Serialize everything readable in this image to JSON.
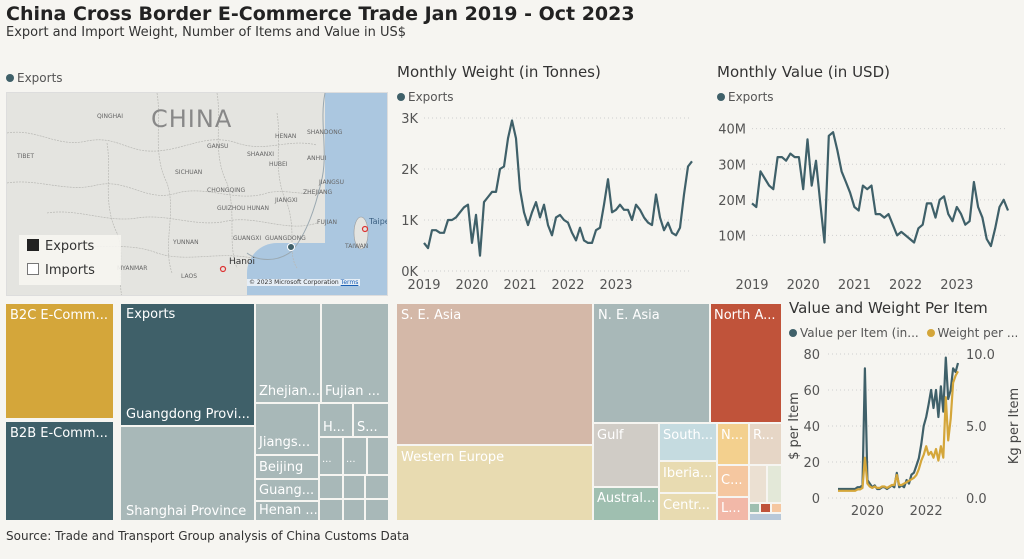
{
  "header": {
    "title": "China Cross Border E-Commerce Trade Jan 2019 - Oct 2023",
    "subtitle": "Export and Import Weight, Number of Items and Value in US$"
  },
  "map": {
    "legend_label": "Exports",
    "country_label": "CHINA",
    "toggle_exports": "Exports",
    "toggle_imports": "Imports",
    "copyright": "© 2023 Microsoft Corporation",
    "terms": "Terms",
    "places": [
      "QINGHAI",
      "TIBET",
      "GANSU",
      "SHAANXI",
      "HENAN",
      "SHANDONG",
      "SICHUAN",
      "HUBEI",
      "ANHUI",
      "JIANGSU",
      "CHONGQING",
      "ZHEJIANG",
      "GUIZHOU",
      "JIANGXI",
      "HUNAN",
      "FUJIAN",
      "YUNNAN",
      "GUANGXI",
      "GUANGDONG",
      "TAIWAN",
      "Taipei",
      "Hanoi",
      "LAOS",
      "MYANMAR"
    ]
  },
  "weight_chart": {
    "title": "Monthly Weight (in Tonnes)",
    "legend": "Exports",
    "y_ticks": [
      "0K",
      "1K",
      "2K",
      "3K"
    ],
    "x_ticks": [
      "2019",
      "2020",
      "2021",
      "2022",
      "2023"
    ]
  },
  "value_chart": {
    "title": "Monthly Value (in USD)",
    "legend": "Exports",
    "y_ticks": [
      "10M",
      "20M",
      "30M",
      "40M"
    ],
    "x_ticks": [
      "2019",
      "2020",
      "2021",
      "2022",
      "2023"
    ]
  },
  "per_item_chart": {
    "title": "Value and Weight Per Item",
    "legend_value": "Value per Item (in...",
    "legend_weight": "Weight per ...",
    "y_left_label": "$ per Item",
    "y_right_label": "Kg per Item",
    "y_left_ticks": [
      "0",
      "20",
      "40",
      "60",
      "80"
    ],
    "y_right_ticks": [
      "0.0",
      "5.0",
      "10.0"
    ],
    "x_ticks": [
      "2020",
      "2022"
    ]
  },
  "treemap_type": {
    "b2c": "B2C E-Comm...",
    "b2b": "B2B E-Comm..."
  },
  "treemap_province": {
    "exports": "Exports",
    "guangdong": "Guangdong Provi...",
    "shanghai": "Shanghai Province",
    "zhejiang": "Zhejian...",
    "fujian": "Fujian ...",
    "jiangsu": "Jiangs...",
    "beijing": "Beijing",
    "guangxi": "Guang...",
    "henan": "Henan ...",
    "h": "H...",
    "s": "S...",
    "dots": "..."
  },
  "treemap_region": {
    "se_asia": "S. E. Asia",
    "ne_asia": "N. E. Asia",
    "north_america": "North A...",
    "western_europe": "Western Europe",
    "gulf": "Gulf",
    "south": "South...",
    "iberia": "Iberia...",
    "australia": "Austral...",
    "central": "Centr...",
    "n": "N...",
    "r": "R...",
    "c": "C...",
    "l": "L..."
  },
  "footer": {
    "source": "Source: Trade and Transport Group analysis of China Customs Data"
  },
  "colors": {
    "primary": "#3f6069",
    "gold": "#d4a63a",
    "grey_teal": "#a8b8b8",
    "beige": "#e8dbb1",
    "rose": "#d4b8a8",
    "rust": "#c0533a",
    "background": "#f6f5f1"
  },
  "chart_data": [
    {
      "type": "line",
      "title": "Monthly Weight (in Tonnes)",
      "series": [
        {
          "name": "Exports",
          "x_start": "2019-01",
          "values": [
            0.55,
            0.45,
            0.8,
            0.8,
            0.75,
            0.75,
            1.0,
            1.0,
            1.05,
            1.15,
            1.25,
            1.3,
            0.55,
            1.1,
            0.3,
            1.35,
            1.45,
            1.55,
            1.55,
            2.0,
            2.05,
            2.6,
            2.95,
            2.6,
            1.6,
            1.15,
            0.9,
            1.15,
            1.35,
            1.05,
            1.3,
            0.9,
            0.7,
            1.05,
            1.1,
            1.0,
            0.95,
            0.75,
            0.6,
            0.85,
            0.6,
            0.55,
            0.55,
            0.8,
            0.85,
            1.3,
            1.8,
            1.15,
            1.2,
            1.3,
            1.2,
            1.2,
            1.0,
            1.3,
            1.2,
            1.05,
            0.95,
            0.9,
            1.5,
            1.05,
            0.8,
            0.95,
            0.75,
            0.7,
            0.85,
            1.5,
            2.05,
            2.15
          ]
        }
      ],
      "ylim": [
        0,
        3
      ],
      "x_ticks": [
        "2019",
        "2020",
        "2021",
        "2022",
        "2023"
      ]
    },
    {
      "type": "line",
      "title": "Monthly Value (in USD)",
      "series": [
        {
          "name": "Exports",
          "x_start": "2019-01",
          "values": [
            19,
            18,
            28,
            26,
            24,
            23,
            32,
            32,
            31,
            33,
            32,
            32,
            23,
            37,
            24,
            31,
            19,
            8,
            38,
            39,
            34,
            28,
            25,
            22,
            18,
            17,
            24,
            23,
            24,
            16,
            16,
            15,
            16,
            13,
            10,
            11,
            10,
            9,
            8,
            12,
            13,
            19,
            19,
            15,
            20,
            21,
            16,
            14,
            18,
            16,
            13,
            14,
            25,
            18,
            15,
            9,
            7,
            12,
            18,
            20,
            17
          ]
        }
      ],
      "ylim": [
        0,
        43
      ],
      "x_ticks": [
        "2019",
        "2020",
        "2021",
        "2022",
        "2023"
      ]
    },
    {
      "type": "line",
      "title": "Value and Weight Per Item",
      "series": [
        {
          "name": "Value per Item (in...",
          "axis": "left",
          "values": [
            5,
            5,
            5,
            5,
            5,
            5,
            5,
            5,
            6,
            6,
            7,
            72,
            10,
            8,
            6,
            7,
            5,
            5,
            6,
            6,
            5,
            6,
            7,
            6,
            14,
            6,
            7,
            6,
            10,
            8,
            13,
            14,
            18,
            22,
            30,
            40,
            45,
            52,
            60,
            50,
            60,
            45,
            62,
            48,
            78,
            55,
            60,
            72,
            70,
            75
          ]
        },
        {
          "name": "Weight per ...",
          "axis": "right",
          "values": [
            0.5,
            0.5,
            0.5,
            0.5,
            0.5,
            0.5,
            0.5,
            0.5,
            0.6,
            0.6,
            0.7,
            2.8,
            1.0,
            0.8,
            0.7,
            0.8,
            0.7,
            0.7,
            0.8,
            0.8,
            0.7,
            0.8,
            0.9,
            0.9,
            1.6,
            0.9,
            0.9,
            1.0,
            1.1,
            1.2,
            1.3,
            1.4,
            1.6,
            2.0,
            2.6,
            3.0,
            3.6,
            3.0,
            3.2,
            2.8,
            3.4,
            2.6,
            3.6,
            2.8,
            7.0,
            4.0,
            5.5,
            8.0,
            8.5,
            8.8
          ]
        }
      ],
      "ylim_left": [
        0,
        80
      ],
      "ylim_right": [
        0,
        10
      ],
      "x_ticks": [
        "2020",
        "2022"
      ]
    }
  ]
}
